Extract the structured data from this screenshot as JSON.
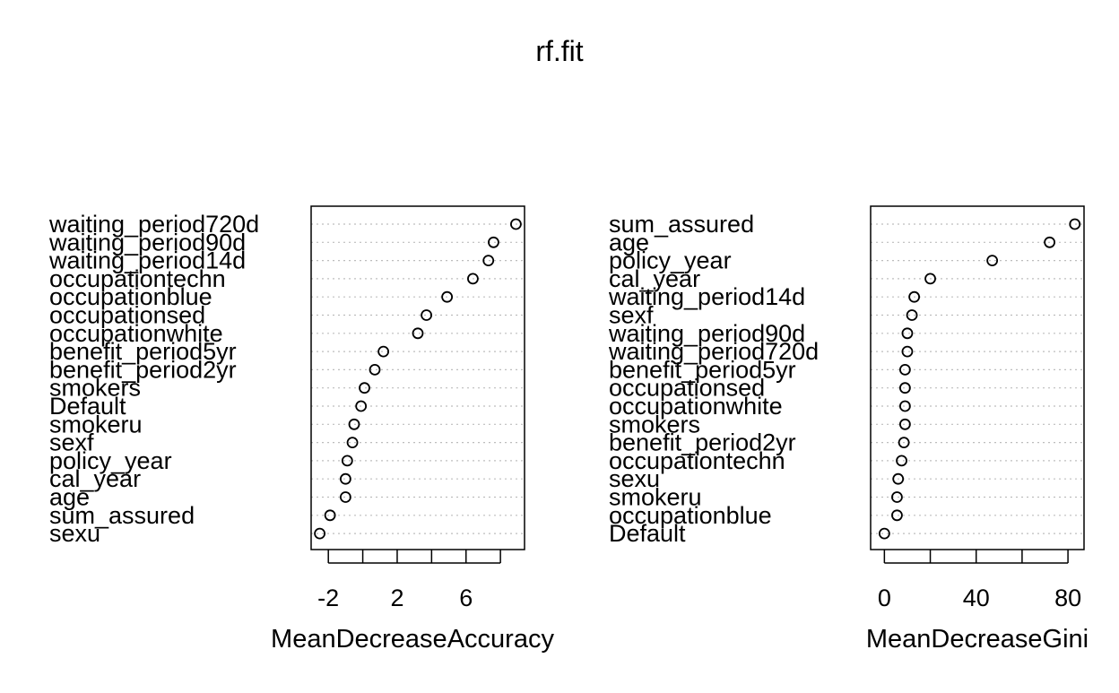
{
  "title": "rf.fit",
  "chart_data": [
    {
      "type": "scatter",
      "subtype": "dotchart",
      "xlabel": "MeanDecreaseAccuracy",
      "xlim": [
        -3.0,
        9.4
      ],
      "xticks": [
        -2,
        0,
        2,
        4,
        6,
        8
      ],
      "xtick_labels": [
        "-2",
        "",
        "2",
        "",
        "6",
        ""
      ],
      "grid": "dotted horizontal",
      "categories": [
        "waiting_period720d",
        "waiting_period90d",
        "waiting_period14d",
        "occupationtechn",
        "occupationblue",
        "occupationsed",
        "occupationwhite",
        "benefit_period5yr",
        "benefit_period2yr",
        "smokers",
        "Default",
        "smokeru",
        "sexf",
        "policy_year",
        "cal_year",
        "age",
        "sum_assured",
        "sexu"
      ],
      "values": [
        8.9,
        7.6,
        7.3,
        6.4,
        4.9,
        3.7,
        3.2,
        1.2,
        0.7,
        0.1,
        -0.1,
        -0.5,
        -0.6,
        -0.9,
        -1.0,
        -1.0,
        -1.9,
        -2.5
      ]
    },
    {
      "type": "scatter",
      "subtype": "dotchart",
      "xlabel": "MeanDecreaseGini",
      "xlim": [
        -6,
        87
      ],
      "xticks": [
        0,
        20,
        40,
        60,
        80
      ],
      "xtick_labels": [
        "0",
        "",
        "40",
        "",
        "80"
      ],
      "grid": "dotted horizontal",
      "categories": [
        "sum_assured",
        "age",
        "policy_year",
        "cal_year",
        "waiting_period14d",
        "sexf",
        "waiting_period90d",
        "waiting_period720d",
        "benefit_period5yr",
        "occupationsed",
        "occupationwhite",
        "smokers",
        "benefit_period2yr",
        "occupationtechn",
        "sexu",
        "smokeru",
        "occupationblue",
        "Default"
      ],
      "values": [
        83,
        72,
        47,
        20,
        13,
        12,
        10,
        10,
        9,
        9,
        9,
        9,
        8.5,
        7.5,
        6,
        5.5,
        5.5,
        0
      ]
    }
  ]
}
